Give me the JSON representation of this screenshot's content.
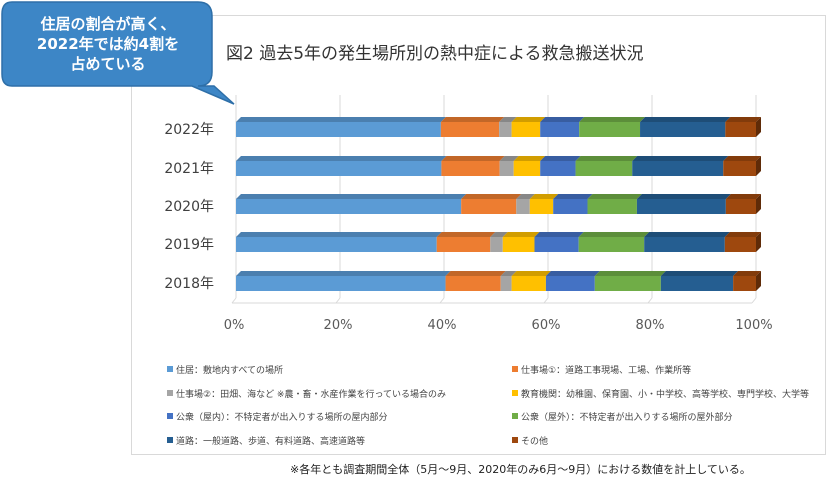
{
  "callout": {
    "line1": "住居の割合が高く、",
    "line2": "2022年では約4割を",
    "line3": "占めている",
    "color": "#3d86c6"
  },
  "footnote": "※各年とも調査期間全体（5月〜9月、2020年のみ6月〜9月）における数値を計上している。",
  "chart_data": {
    "type": "bar",
    "orientation": "horizontal",
    "stacked": "percent",
    "title": "図2 過去5年の発生場所別の熱中症による救急搬送状況",
    "categories": [
      "2022年",
      "2021年",
      "2020年",
      "2019年",
      "2018年"
    ],
    "xlim": [
      0,
      100
    ],
    "x_ticks": [
      "0%",
      "20%",
      "40%",
      "60%",
      "80%",
      "100%"
    ],
    "grid": true,
    "legend_position": "bottom",
    "series": [
      {
        "name": "住居：敷地内すべての場所",
        "color": "#5b9bd5",
        "values": [
          39.4,
          39.5,
          43.3,
          38.6,
          40.3
        ]
      },
      {
        "name": "仕事場①：道路工事現場、工場、作業所等",
        "color": "#ed7d31",
        "values": [
          11.2,
          11.2,
          10.6,
          10.3,
          10.6
        ]
      },
      {
        "name": "仕事場②：田畑、海など ※農・畜・水産作業を行っている場合のみ",
        "color": "#a5a5a5",
        "values": [
          2.4,
          2.7,
          2.6,
          2.4,
          2.1
        ]
      },
      {
        "name": "教育機関：幼稚園、保育園、小・中学校、高等学校、専門学校、大学等",
        "color": "#ffc000",
        "values": [
          5.5,
          5.1,
          4.5,
          6.1,
          6.6
        ]
      },
      {
        "name": "公衆（屋内）：不特定者が出入りする場所の屋内部分",
        "color": "#4472c4",
        "values": [
          7.5,
          6.8,
          6.6,
          8.5,
          9.4
        ]
      },
      {
        "name": "公衆（屋外）：不特定者が出入りする場所の屋外部分",
        "color": "#70ad47",
        "values": [
          11.7,
          10.9,
          9.5,
          12.6,
          12.7
        ]
      },
      {
        "name": "道路：一般道路、歩道、有料道路、高速道路等",
        "color": "#255e91",
        "values": [
          16.4,
          17.5,
          17.1,
          15.5,
          13.9
        ]
      },
      {
        "name": "その他",
        "color": "#9e480e",
        "values": [
          5.9,
          6.3,
          5.8,
          6.0,
          4.4
        ]
      }
    ]
  }
}
